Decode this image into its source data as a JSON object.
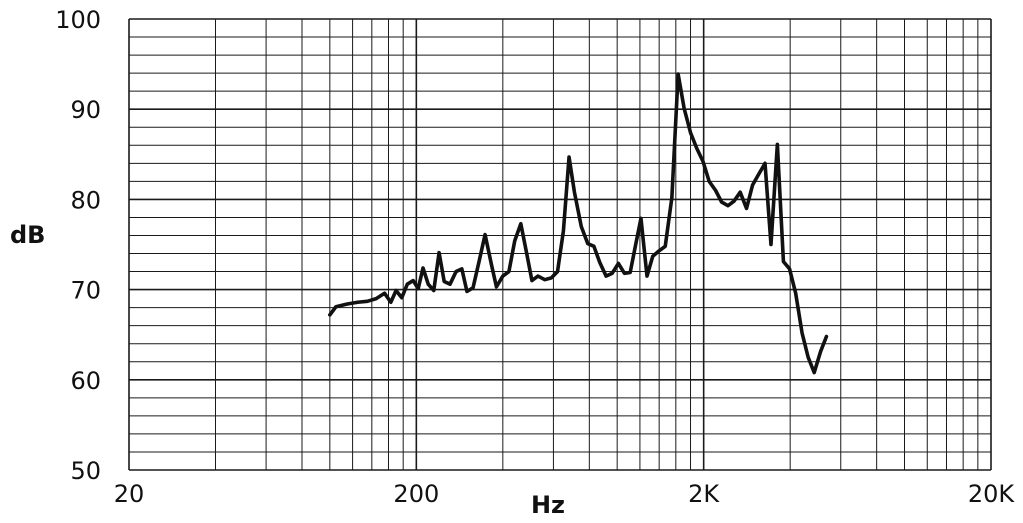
{
  "chart_data": {
    "type": "line",
    "title": "",
    "xlabel": "Hz",
    "ylabel": "dB",
    "x_scale": "log",
    "xlim": [
      20,
      20000
    ],
    "ylim": [
      50,
      100
    ],
    "grid": true,
    "x_ticks": [
      {
        "value": 20,
        "label": "20"
      },
      {
        "value": 200,
        "label": "200"
      },
      {
        "value": 2000,
        "label": "2K"
      },
      {
        "value": 20000,
        "label": "20K"
      }
    ],
    "y_ticks": [
      {
        "value": 100,
        "label": "100"
      },
      {
        "value": 90,
        "label": "90"
      },
      {
        "value": 80,
        "label": "80"
      },
      {
        "value": 70,
        "label": "70"
      },
      {
        "value": 60,
        "label": "60"
      },
      {
        "value": 50,
        "label": "50"
      }
    ],
    "series": [
      {
        "color": "#111111",
        "points": [
          [
            100,
            67.2
          ],
          [
            105,
            68.1
          ],
          [
            115,
            68.4
          ],
          [
            125,
            68.6
          ],
          [
            135,
            68.7
          ],
          [
            145,
            69.0
          ],
          [
            155,
            69.6
          ],
          [
            163,
            68.6
          ],
          [
            170,
            69.9
          ],
          [
            178,
            69.1
          ],
          [
            186,
            70.6
          ],
          [
            195,
            71.0
          ],
          [
            203,
            70.1
          ],
          [
            211,
            72.4
          ],
          [
            220,
            70.6
          ],
          [
            230,
            69.9
          ],
          [
            240,
            74.1
          ],
          [
            250,
            70.9
          ],
          [
            262,
            70.6
          ],
          [
            275,
            72.0
          ],
          [
            288,
            72.3
          ],
          [
            300,
            69.8
          ],
          [
            315,
            70.2
          ],
          [
            330,
            73.0
          ],
          [
            347,
            76.1
          ],
          [
            365,
            72.8
          ],
          [
            380,
            70.3
          ],
          [
            400,
            71.5
          ],
          [
            420,
            72.0
          ],
          [
            440,
            75.4
          ],
          [
            462,
            77.3
          ],
          [
            483,
            74.2
          ],
          [
            505,
            71.0
          ],
          [
            530,
            71.5
          ],
          [
            560,
            71.1
          ],
          [
            590,
            71.3
          ],
          [
            620,
            72.0
          ],
          [
            650,
            76.5
          ],
          [
            680,
            84.7
          ],
          [
            710,
            80.8
          ],
          [
            750,
            77.0
          ],
          [
            790,
            75.1
          ],
          [
            830,
            74.8
          ],
          [
            870,
            73.0
          ],
          [
            915,
            71.5
          ],
          [
            960,
            71.8
          ],
          [
            1010,
            72.9
          ],
          [
            1060,
            71.8
          ],
          [
            1110,
            71.9
          ],
          [
            1160,
            75.0
          ],
          [
            1210,
            77.9
          ],
          [
            1270,
            71.5
          ],
          [
            1330,
            73.7
          ],
          [
            1400,
            74.3
          ],
          [
            1470,
            74.8
          ],
          [
            1550,
            80.2
          ],
          [
            1630,
            93.9
          ],
          [
            1710,
            90.1
          ],
          [
            1800,
            87.4
          ],
          [
            1890,
            85.7
          ],
          [
            1990,
            84.2
          ],
          [
            2090,
            82.0
          ],
          [
            2200,
            81.0
          ],
          [
            2310,
            79.7
          ],
          [
            2430,
            79.3
          ],
          [
            2550,
            79.8
          ],
          [
            2680,
            80.8
          ],
          [
            2820,
            79.0
          ],
          [
            2960,
            81.6
          ],
          [
            3110,
            82.8
          ],
          [
            3270,
            84.0
          ],
          [
            3430,
            75.0
          ],
          [
            3610,
            86.1
          ],
          [
            3790,
            73.1
          ],
          [
            3980,
            72.3
          ],
          [
            4180,
            69.6
          ],
          [
            4400,
            65.2
          ],
          [
            4620,
            62.5
          ],
          [
            4850,
            60.8
          ],
          [
            5100,
            63.1
          ],
          [
            5350,
            64.8
          ]
        ]
      }
    ]
  }
}
